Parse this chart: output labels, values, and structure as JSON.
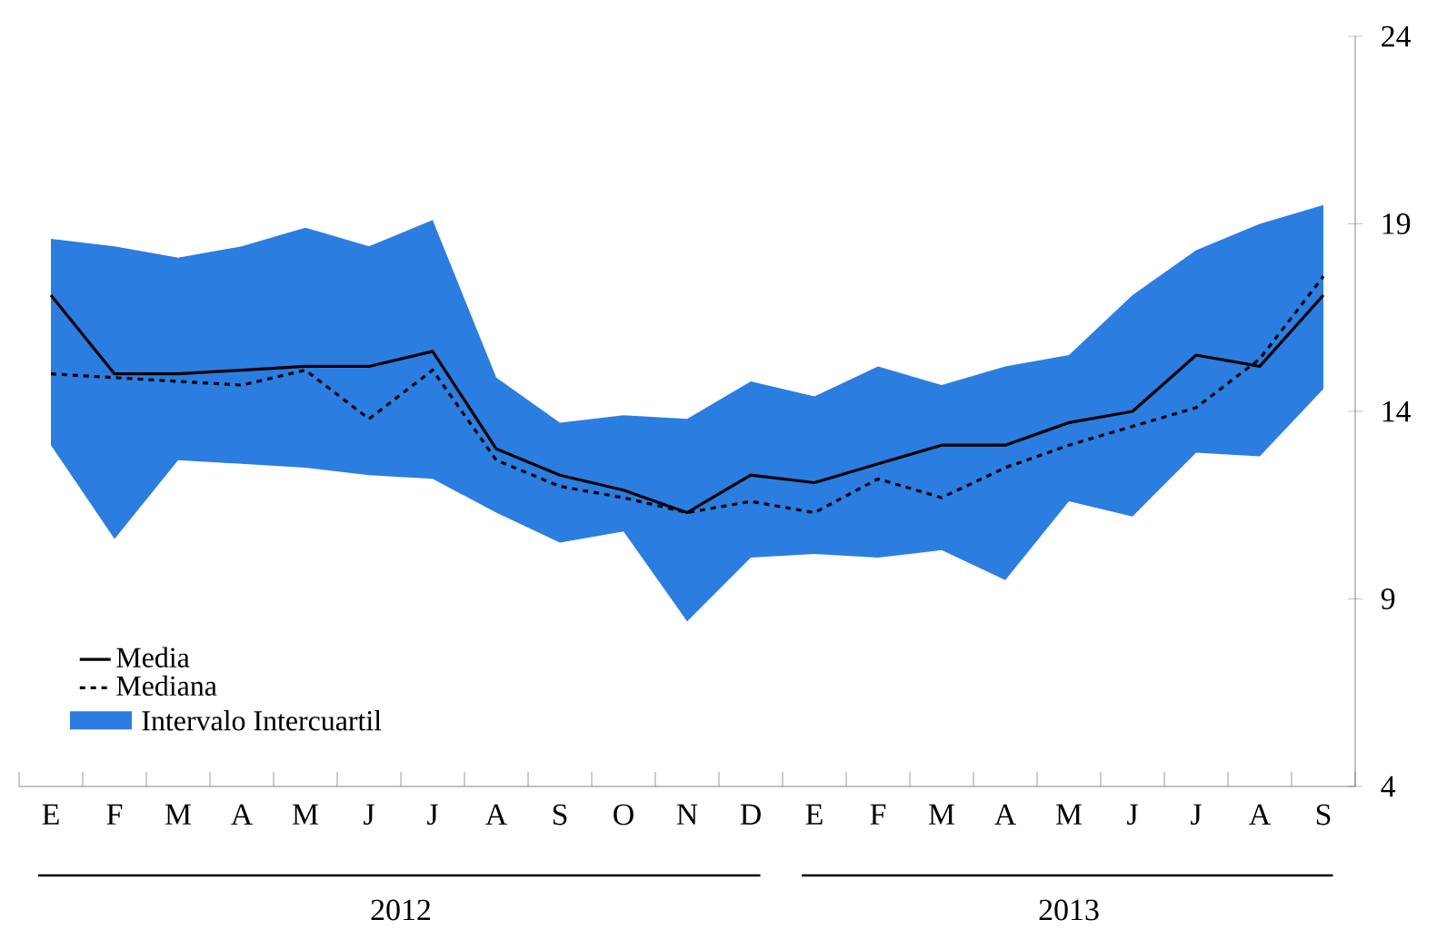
{
  "chart_data": {
    "type": "line",
    "categories": [
      "E",
      "F",
      "M",
      "A",
      "M",
      "J",
      "J",
      "A",
      "S",
      "O",
      "N",
      "D",
      "E",
      "F",
      "M",
      "A",
      "M",
      "J",
      "J",
      "A",
      "S"
    ],
    "series": [
      {
        "name": "Media",
        "color": "#000000",
        "line_style": "solid",
        "values": [
          17.1,
          15.0,
          15.0,
          15.1,
          15.2,
          15.2,
          15.6,
          13.0,
          12.3,
          11.9,
          11.3,
          12.3,
          12.1,
          12.6,
          13.1,
          13.1,
          13.7,
          14.0,
          15.5,
          15.2,
          17.1
        ]
      },
      {
        "name": "Mediana",
        "color": "#000000",
        "line_style": "dashed",
        "values": [
          15.0,
          14.9,
          14.8,
          14.7,
          15.1,
          13.8,
          15.1,
          12.7,
          12.0,
          11.7,
          11.3,
          11.6,
          11.3,
          12.2,
          11.7,
          12.5,
          13.1,
          13.6,
          14.1,
          15.4,
          17.6
        ],
        "lower": [
          13.1,
          10.6,
          12.7,
          12.6,
          12.5,
          12.3,
          12.2,
          11.3,
          10.5,
          10.8,
          8.4,
          10.1,
          10.2,
          10.1,
          10.3,
          9.5,
          11.6,
          11.2,
          12.9,
          12.8,
          14.6
        ],
        "upper": [
          18.6,
          18.4,
          18.1,
          18.4,
          18.9,
          18.4,
          19.1,
          14.9,
          13.7,
          13.9,
          13.8,
          14.8,
          14.4,
          15.2,
          14.7,
          15.2,
          15.5,
          17.1,
          18.3,
          19.0,
          19.5
        ]
      }
    ],
    "ylim": [
      4,
      24
    ],
    "yticks": [
      4,
      9,
      14,
      19,
      24
    ],
    "grid": false,
    "legend": "bottom left",
    "marker": "none",
    "annotations": [
      "Intervalo Intercuartil",
      "2012",
      "2013"
    ]
  }
}
